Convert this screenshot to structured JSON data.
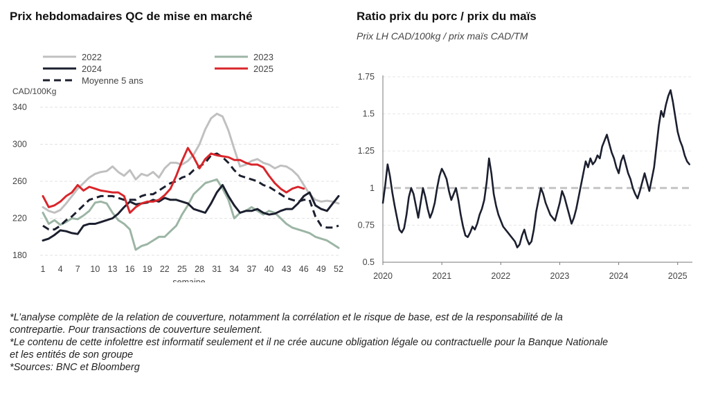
{
  "charts": {
    "left": {
      "title": "Prix hebdomadaires QC de mise en marché",
      "ylabel": "CAD/100Kg",
      "xlabel": "semaine"
    },
    "right": {
      "title": "Ratio prix du porc / prix du maïs",
      "subtitle": "Prix LH CAD/100kg / prix maïs CAD/TM"
    }
  },
  "footnotes": [
    "*L’analyse complète de la relation de couverture, notamment la corrélation et le risque de base, est de la responsabilité de la contrepartie. Pour transactions de couverture seulement.",
    "*Le contenu de cette infolettre est informatif seulement et il ne crée aucune obligation légale ou contractuelle pour la Banque Nationale et les entités de son groupe",
    "*Sources: BNC et Bloomberg"
  ],
  "chart_data": [
    {
      "type": "line",
      "title": "Prix hebdomadaires QC de mise en marché",
      "xlabel": "semaine",
      "ylabel": "CAD/100Kg",
      "xlim": [
        1,
        52
      ],
      "ylim": [
        180,
        340
      ],
      "x_ticks": [
        1,
        4,
        7,
        10,
        13,
        16,
        19,
        22,
        25,
        28,
        31,
        34,
        37,
        40,
        43,
        46,
        49,
        52
      ],
      "y_ticks": [
        180,
        220,
        260,
        300,
        340
      ],
      "grid": "horizontal",
      "legend_position": "top",
      "series": [
        {
          "name": "2022",
          "color": "#c0c0c0",
          "dash": "solid",
          "x": [
            1,
            2,
            3,
            4,
            5,
            6,
            7,
            8,
            9,
            10,
            11,
            12,
            13,
            14,
            15,
            16,
            17,
            18,
            19,
            20,
            21,
            22,
            23,
            24,
            25,
            26,
            27,
            28,
            29,
            30,
            31,
            32,
            33,
            34,
            35,
            36,
            37,
            38,
            39,
            40,
            41,
            42,
            43,
            44,
            45,
            46,
            47,
            48,
            49,
            50,
            51,
            52
          ],
          "values": [
            232,
            228,
            226,
            229,
            236,
            244,
            252,
            258,
            264,
            268,
            270,
            271,
            276,
            270,
            266,
            272,
            262,
            268,
            266,
            270,
            264,
            274,
            280,
            280,
            278,
            282,
            289,
            300,
            316,
            328,
            333,
            330,
            315,
            295,
            276,
            278,
            282,
            284,
            280,
            278,
            274,
            277,
            276,
            272,
            266,
            256,
            246,
            240,
            238,
            239,
            238,
            236
          ]
        },
        {
          "name": "2023",
          "color": "#9cb5a5",
          "dash": "solid",
          "x": [
            1,
            2,
            3,
            4,
            5,
            6,
            7,
            8,
            9,
            10,
            11,
            12,
            13,
            14,
            15,
            16,
            17,
            18,
            19,
            20,
            21,
            22,
            23,
            24,
            25,
            26,
            27,
            28,
            29,
            30,
            31,
            32,
            33,
            34,
            35,
            36,
            37,
            38,
            39,
            40,
            41,
            42,
            43,
            44,
            45,
            46,
            47,
            48,
            49,
            50,
            51,
            52
          ],
          "values": [
            226,
            214,
            218,
            213,
            216,
            220,
            219,
            223,
            228,
            237,
            238,
            236,
            226,
            218,
            214,
            208,
            186,
            190,
            192,
            196,
            200,
            200,
            206,
            212,
            224,
            234,
            246,
            252,
            258,
            260,
            262,
            252,
            240,
            220,
            226,
            228,
            232,
            228,
            224,
            228,
            226,
            220,
            214,
            210,
            208,
            206,
            204,
            200,
            198,
            196,
            192,
            188
          ]
        },
        {
          "name": "2024",
          "color": "#1b1f2e",
          "dash": "solid",
          "x": [
            1,
            2,
            3,
            4,
            5,
            6,
            7,
            8,
            9,
            10,
            11,
            12,
            13,
            14,
            15,
            16,
            17,
            18,
            19,
            20,
            21,
            22,
            23,
            24,
            25,
            26,
            27,
            28,
            29,
            30,
            31,
            32,
            33,
            34,
            35,
            36,
            37,
            38,
            39,
            40,
            41,
            42,
            43,
            44,
            45,
            46,
            47,
            48,
            49,
            50,
            51,
            52
          ],
          "values": [
            196,
            198,
            202,
            207,
            206,
            204,
            203,
            212,
            214,
            214,
            216,
            218,
            220,
            225,
            232,
            238,
            235,
            236,
            237,
            240,
            238,
            242,
            240,
            240,
            238,
            236,
            230,
            228,
            226,
            236,
            248,
            256,
            244,
            234,
            226,
            228,
            228,
            230,
            226,
            224,
            225,
            228,
            230,
            230,
            236,
            244,
            248,
            234,
            230,
            228,
            236,
            244
          ]
        },
        {
          "name": "2025",
          "color": "#d9252a",
          "dash": "solid",
          "x": [
            1,
            2,
            3,
            4,
            5,
            6,
            7,
            8,
            9,
            10,
            11,
            12,
            13,
            14,
            15,
            16,
            17,
            18,
            19,
            20,
            21,
            22,
            23,
            24,
            25,
            26,
            27,
            28,
            29,
            30,
            31,
            32,
            33,
            34,
            35,
            36,
            37,
            38,
            39,
            40,
            41,
            42,
            43,
            44,
            45,
            46
          ],
          "values": [
            244,
            232,
            234,
            238,
            244,
            248,
            256,
            250,
            254,
            252,
            250,
            249,
            248,
            248,
            244,
            226,
            232,
            236,
            238,
            238,
            240,
            245,
            252,
            266,
            282,
            296,
            286,
            274,
            284,
            290,
            288,
            287,
            286,
            283,
            283,
            280,
            278,
            278,
            275,
            266,
            258,
            252,
            248,
            252,
            254,
            252
          ]
        },
        {
          "name": "Moyenne 5 ans",
          "color": "#1b1f2e",
          "dash": "dashed",
          "x": [
            1,
            2,
            3,
            4,
            5,
            6,
            7,
            8,
            9,
            10,
            11,
            12,
            13,
            14,
            15,
            16,
            17,
            18,
            19,
            20,
            21,
            22,
            23,
            24,
            25,
            26,
            27,
            28,
            29,
            30,
            31,
            32,
            33,
            34,
            35,
            36,
            37,
            38,
            39,
            40,
            41,
            42,
            43,
            44,
            45,
            46,
            47,
            48,
            49,
            50,
            51,
            52
          ],
          "values": [
            212,
            208,
            208,
            212,
            218,
            222,
            228,
            234,
            240,
            242,
            244,
            244,
            244,
            242,
            240,
            240,
            240,
            244,
            246,
            246,
            250,
            254,
            258,
            260,
            264,
            266,
            272,
            276,
            280,
            288,
            290,
            286,
            280,
            272,
            266,
            264,
            262,
            260,
            256,
            254,
            250,
            246,
            242,
            240,
            238,
            240,
            240,
            222,
            212,
            210,
            210,
            212
          ]
        }
      ]
    },
    {
      "type": "line",
      "title": "Ratio prix du porc / prix du maïs",
      "subtitle": "Prix LH CAD/100kg / prix maïs CAD/TM",
      "xlim": [
        2020.0,
        2025.25
      ],
      "ylim": [
        0.5,
        1.75
      ],
      "x_ticks": [
        2020,
        2021,
        2022,
        2023,
        2024,
        2025
      ],
      "y_ticks": [
        0.5,
        0.75,
        1,
        1.25,
        1.5,
        1.75
      ],
      "y_tick_labels": [
        "0.5",
        "0.75",
        "1",
        "1.25",
        "1.5",
        "1.75"
      ],
      "grid": "horizontal",
      "reference_line": {
        "value": 1,
        "color": "#c4c4c4",
        "dash": "dashed"
      },
      "series": [
        {
          "color": "#1b1f2e",
          "x": [
            2020.0,
            2020.04,
            2020.08,
            2020.12,
            2020.16,
            2020.2,
            2020.24,
            2020.28,
            2020.32,
            2020.36,
            2020.4,
            2020.44,
            2020.48,
            2020.52,
            2020.56,
            2020.6,
            2020.64,
            2020.68,
            2020.72,
            2020.76,
            2020.8,
            2020.84,
            2020.88,
            2020.92,
            2020.96,
            2021.0,
            2021.04,
            2021.08,
            2021.12,
            2021.16,
            2021.2,
            2021.24,
            2021.28,
            2021.32,
            2021.36,
            2021.4,
            2021.44,
            2021.48,
            2021.52,
            2021.56,
            2021.6,
            2021.64,
            2021.68,
            2021.72,
            2021.76,
            2021.8,
            2021.84,
            2021.88,
            2021.92,
            2021.96,
            2022.0,
            2022.04,
            2022.08,
            2022.12,
            2022.16,
            2022.2,
            2022.24,
            2022.28,
            2022.32,
            2022.36,
            2022.4,
            2022.44,
            2022.48,
            2022.52,
            2022.56,
            2022.6,
            2022.64,
            2022.68,
            2022.72,
            2022.76,
            2022.8,
            2022.84,
            2022.88,
            2022.92,
            2022.96,
            2023.0,
            2023.04,
            2023.08,
            2023.12,
            2023.16,
            2023.2,
            2023.24,
            2023.28,
            2023.32,
            2023.36,
            2023.4,
            2023.44,
            2023.48,
            2023.52,
            2023.56,
            2023.6,
            2023.64,
            2023.68,
            2023.72,
            2023.76,
            2023.8,
            2023.84,
            2023.88,
            2023.92,
            2023.96,
            2024.0,
            2024.04,
            2024.08,
            2024.12,
            2024.16,
            2024.2,
            2024.24,
            2024.28,
            2024.32,
            2024.36,
            2024.4,
            2024.44,
            2024.48,
            2024.52,
            2024.56,
            2024.6,
            2024.64,
            2024.68,
            2024.72,
            2024.76,
            2024.8,
            2024.84,
            2024.88,
            2024.92,
            2024.96,
            2025.0,
            2025.04,
            2025.08,
            2025.12,
            2025.16,
            2025.2
          ],
          "values": [
            0.9,
            1.02,
            1.16,
            1.08,
            0.97,
            0.88,
            0.8,
            0.72,
            0.7,
            0.73,
            0.82,
            0.94,
            1.0,
            0.96,
            0.88,
            0.8,
            0.9,
            1.0,
            0.94,
            0.86,
            0.8,
            0.84,
            0.9,
            1.0,
            1.08,
            1.13,
            1.1,
            1.06,
            0.98,
            0.92,
            0.96,
            1.0,
            0.92,
            0.82,
            0.74,
            0.68,
            0.67,
            0.7,
            0.74,
            0.72,
            0.76,
            0.82,
            0.86,
            0.92,
            1.04,
            1.2,
            1.1,
            0.96,
            0.88,
            0.82,
            0.78,
            0.74,
            0.72,
            0.7,
            0.68,
            0.66,
            0.64,
            0.6,
            0.62,
            0.68,
            0.72,
            0.66,
            0.62,
            0.64,
            0.72,
            0.84,
            0.92,
            1.0,
            0.96,
            0.9,
            0.86,
            0.82,
            0.8,
            0.78,
            0.84,
            0.9,
            0.98,
            0.94,
            0.88,
            0.82,
            0.76,
            0.8,
            0.86,
            0.94,
            1.02,
            1.1,
            1.18,
            1.14,
            1.2,
            1.16,
            1.18,
            1.22,
            1.2,
            1.28,
            1.32,
            1.36,
            1.3,
            1.24,
            1.2,
            1.14,
            1.1,
            1.18,
            1.22,
            1.16,
            1.1,
            1.06,
            1.0,
            0.96,
            0.93,
            0.98,
            1.04,
            1.1,
            1.04,
            0.98,
            1.06,
            1.14,
            1.28,
            1.42,
            1.52,
            1.48,
            1.56,
            1.62,
            1.66,
            1.58,
            1.48,
            1.38,
            1.32,
            1.28,
            1.22,
            1.18,
            1.16
          ]
        }
      ]
    }
  ]
}
